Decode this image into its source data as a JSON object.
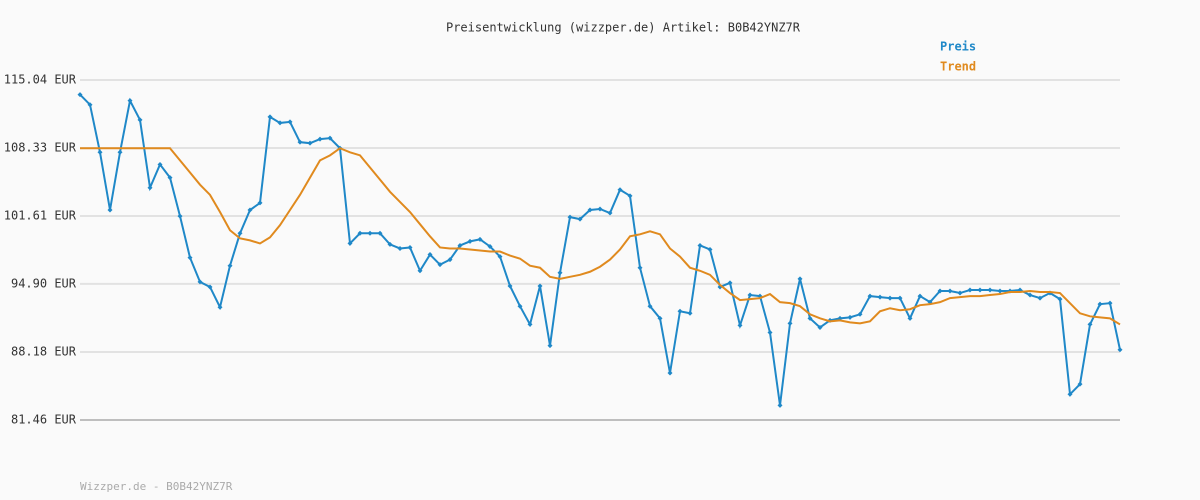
{
  "chart_data": {
    "type": "line",
    "title": "Preisentwicklung (wizzper.de) Artikel: B0B42YNZ7R",
    "categories": [
      null,
      null,
      null,
      null,
      null,
      null,
      null,
      null,
      null,
      null,
      null,
      null,
      null,
      null,
      null,
      null,
      null,
      null,
      null,
      null,
      null,
      null,
      null,
      null,
      null,
      null,
      null,
      null,
      null,
      null,
      null,
      null,
      null,
      null,
      null,
      null,
      null,
      null,
      null,
      null,
      null,
      null,
      null,
      null,
      null,
      null,
      null,
      null,
      null,
      null,
      null,
      null,
      null,
      null,
      null,
      null,
      null,
      null,
      null,
      null,
      null,
      null,
      null,
      null,
      null,
      null,
      null,
      null,
      null,
      null,
      null,
      null,
      null,
      null,
      null,
      null,
      null,
      null,
      null,
      null,
      null,
      null,
      null,
      null,
      null,
      null,
      null,
      null,
      null,
      null,
      null,
      null,
      null,
      null,
      null,
      null,
      null,
      null,
      null,
      null,
      null,
      null,
      null,
      null,
      null
    ],
    "series": [
      {
        "name": "Preis",
        "color": "#1f88c8",
        "markers": true,
        "values": [
          113.6,
          112.6,
          107.9,
          102.2,
          107.9,
          113.0,
          111.1,
          104.4,
          106.7,
          105.4,
          101.6,
          97.5,
          95.1,
          94.6,
          92.6,
          96.7,
          99.9,
          102.2,
          102.9,
          111.4,
          110.8,
          110.9,
          108.9,
          108.8,
          109.2,
          109.3,
          108.3,
          98.9,
          99.9,
          99.9,
          99.9,
          98.8,
          98.4,
          98.5,
          96.2,
          97.8,
          96.8,
          97.3,
          98.7,
          99.1,
          99.3,
          98.6,
          97.6,
          94.7,
          92.7,
          90.9,
          94.7,
          88.8,
          96.0,
          101.5,
          101.3,
          102.2,
          102.3,
          101.9,
          104.2,
          103.6,
          96.5,
          92.7,
          91.5,
          86.1,
          92.2,
          92.0,
          98.7,
          98.3,
          94.6,
          95.0,
          90.8,
          93.8,
          93.7,
          90.1,
          82.9,
          91.0,
          95.4,
          91.5,
          90.6,
          91.3,
          91.5,
          91.6,
          91.9,
          93.7,
          93.6,
          93.5,
          93.5,
          91.5,
          93.7,
          93.1,
          94.2,
          94.2,
          94.0,
          94.3,
          94.3,
          94.3,
          94.2,
          94.2,
          94.3,
          93.8,
          93.5,
          94.0,
          93.4,
          84.0,
          85.0,
          90.9,
          92.9,
          93.0,
          88.4
        ]
      },
      {
        "name": "Trend",
        "color": "#e08a1e",
        "markers": false,
        "values": [
          108.3,
          108.3,
          108.3,
          108.3,
          108.3,
          108.3,
          108.3,
          108.3,
          108.3,
          108.3,
          107.1,
          105.9,
          104.7,
          103.7,
          102.0,
          100.2,
          99.4,
          99.2,
          98.9,
          99.5,
          100.7,
          102.2,
          103.7,
          105.4,
          107.1,
          107.6,
          108.3,
          107.9,
          107.6,
          106.4,
          105.2,
          104.0,
          103.0,
          102.0,
          100.8,
          99.6,
          98.5,
          98.4,
          98.4,
          98.3,
          98.2,
          98.1,
          98.1,
          97.7,
          97.4,
          96.7,
          96.5,
          95.6,
          95.4,
          95.6,
          95.8,
          96.1,
          96.6,
          97.3,
          98.3,
          99.6,
          99.8,
          100.1,
          99.8,
          98.4,
          97.6,
          96.5,
          96.2,
          95.8,
          94.8,
          94.0,
          93.3,
          93.4,
          93.5,
          93.9,
          93.1,
          93.0,
          92.7,
          91.9,
          91.5,
          91.2,
          91.3,
          91.1,
          91.0,
          91.2,
          92.2,
          92.5,
          92.3,
          92.4,
          92.8,
          92.9,
          93.1,
          93.5,
          93.6,
          93.7,
          93.7,
          93.8,
          93.9,
          94.1,
          94.1,
          94.2,
          94.1,
          94.1,
          94.0,
          93.0,
          92.0,
          91.7,
          91.6,
          91.5,
          90.9
        ]
      }
    ],
    "ylim": [
      81.46,
      115.04
    ],
    "yticks": [
      {
        "value": 81.46,
        "label": "81.46 EUR"
      },
      {
        "value": 88.18,
        "label": "88.18 EUR"
      },
      {
        "value": 94.9,
        "label": "94.90 EUR"
      },
      {
        "value": 101.61,
        "label": "101.61 EUR"
      },
      {
        "value": 108.33,
        "label": "108.33 EUR"
      },
      {
        "value": 115.04,
        "label": "115.04 EUR"
      }
    ],
    "grid": true,
    "legend": "top-right"
  },
  "footer": "Wizzper.de - B0B42YNZ7R"
}
